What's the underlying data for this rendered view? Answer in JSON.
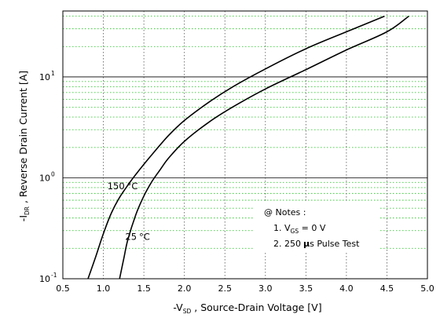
{
  "chart_data": {
    "type": "line",
    "x_scale": "linear",
    "y_scale": "log",
    "xlim": [
      0.5,
      5.0
    ],
    "ylim": [
      0.1,
      45
    ],
    "grid": true,
    "x_ticks": [
      0.5,
      1.0,
      1.5,
      2.0,
      2.5,
      3.0,
      3.5,
      4.0,
      4.5,
      5.0
    ],
    "x_tick_labels": [
      "0.5",
      "1.0",
      "1.5",
      "2.0",
      "2.5",
      "3.0",
      "3.5",
      "4.0",
      "4.5",
      "5.0"
    ],
    "y_ticks": [
      {
        "value": 0.1,
        "base": "10",
        "exp": "-1"
      },
      {
        "value": 1,
        "base": "10",
        "exp": "0"
      },
      {
        "value": 10,
        "base": "10",
        "exp": "1"
      }
    ],
    "xlabel": {
      "prefix": "-V",
      "sub": "SD",
      "suffix": " , Source-Drain Voltage   [V]"
    },
    "ylabel": {
      "prefix": "-I",
      "sub": "DR",
      "suffix": " , Reverse Drain Current   [A]"
    },
    "series": [
      {
        "name": "150 °C",
        "x": [
          0.81,
          0.9,
          1.0,
          1.1,
          1.2,
          1.3,
          1.4,
          1.6,
          1.8,
          2.0,
          2.3,
          2.6,
          3.0,
          3.5,
          4.0,
          4.47
        ],
        "y": [
          0.1,
          0.16,
          0.28,
          0.45,
          0.64,
          0.84,
          1.08,
          1.7,
          2.6,
          3.7,
          5.6,
          8.0,
          12.0,
          19.0,
          28.0,
          40.0
        ]
      },
      {
        "name": "25 °C",
        "x": [
          1.2,
          1.25,
          1.3,
          1.4,
          1.5,
          1.6,
          1.7,
          1.8,
          2.0,
          2.3,
          2.6,
          3.0,
          3.5,
          4.0,
          4.5,
          4.77
        ],
        "y": [
          0.1,
          0.155,
          0.24,
          0.43,
          0.66,
          0.92,
          1.2,
          1.55,
          2.3,
          3.55,
          5.05,
          7.6,
          11.8,
          18.5,
          28.0,
          40.0
        ]
      }
    ],
    "annotations": [
      {
        "text": "150",
        "unit": "°C",
        "x": 1.05,
        "y": 0.83
      },
      {
        "text": "25",
        "unit": "°C",
        "x": 1.27,
        "y": 0.26
      }
    ],
    "notes": {
      "heading": "@ Notes :",
      "line1_prefix": "1. V",
      "line1_sub": "GS",
      "line1_suffix": " = 0 V",
      "line2_prefix": "2. 250",
      "line2_mu": "μ",
      "line2_suffix": "s Pulse Test"
    }
  }
}
